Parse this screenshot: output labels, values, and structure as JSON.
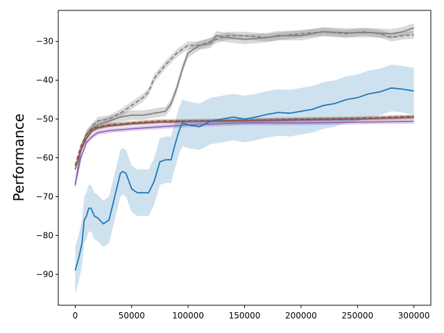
{
  "chart_data": {
    "type": "line",
    "title": "",
    "xlabel": "",
    "ylabel": "Performance",
    "xlim": [
      -15000,
      315000
    ],
    "ylim": [
      -98,
      -22
    ],
    "xticks": [
      0,
      50000,
      100000,
      150000,
      200000,
      250000,
      300000
    ],
    "yticks": [
      -90,
      -80,
      -70,
      -60,
      -50,
      -40,
      -30
    ],
    "grid": false,
    "legend": "none",
    "series": [
      {
        "color": "#808080",
        "dash": "solid",
        "x": [
          0,
          5000,
          10000,
          15000,
          20000,
          30000,
          40000,
          50000,
          60000,
          70000,
          80000,
          85000,
          90000,
          95000,
          100000,
          110000,
          120000,
          125000,
          135000,
          150000,
          170000,
          180000,
          200000,
          220000,
          240000,
          260000,
          280000,
          290000,
          300000
        ],
        "y": [
          -67,
          -58,
          -54,
          -52.5,
          -51.5,
          -50.5,
          -49.5,
          -49,
          -49,
          -48.5,
          -48,
          -46,
          -42,
          -37,
          -33,
          -31,
          -30.5,
          -28.5,
          -29,
          -29.5,
          -29,
          -28.5,
          -28.5,
          -27.5,
          -27.8,
          -27.7,
          -28,
          -27.5,
          -26.5
        ],
        "band": 1.2
      },
      {
        "color": "#808080",
        "dash": "dashed",
        "x": [
          0,
          5000,
          10000,
          15000,
          20000,
          30000,
          40000,
          50000,
          60000,
          65000,
          70000,
          80000,
          90000,
          100000,
          110000,
          120000,
          125000,
          135000,
          150000,
          170000,
          185000,
          200000,
          220000,
          240000,
          255000,
          270000,
          280000,
          290000,
          300000
        ],
        "y": [
          -67,
          -58,
          -54,
          -52,
          -50.5,
          -50,
          -48.5,
          -46.5,
          -44.5,
          -43,
          -39.5,
          -36,
          -33,
          -31,
          -31,
          -30,
          -29.5,
          -28.5,
          -28.5,
          -29,
          -28.5,
          -28,
          -27.5,
          -28,
          -27.5,
          -28,
          -29,
          -28.5,
          -28.3
        ],
        "band": 1.0
      },
      {
        "color": "#8c564b",
        "dash": "dashed",
        "x": [
          0,
          5000,
          10000,
          15000,
          20000,
          30000,
          50000,
          75000,
          100000,
          150000,
          200000,
          250000,
          300000
        ],
        "y": [
          -62,
          -57,
          -54,
          -52.5,
          -52,
          -51.5,
          -51,
          -50.5,
          -50.5,
          -50.3,
          -50,
          -49.8,
          -49.3
        ],
        "band": 0.5
      },
      {
        "color": "#8c564b",
        "dash": "solid",
        "x": [
          0,
          5000,
          10000,
          15000,
          20000,
          30000,
          50000,
          75000,
          100000,
          150000,
          200000,
          250000,
          300000
        ],
        "y": [
          -63,
          -58,
          -55,
          -53,
          -52.3,
          -51.8,
          -51.2,
          -50.8,
          -50.6,
          -50.4,
          -50.2,
          -50,
          -49.6
        ],
        "band": 0.5
      },
      {
        "color": "#9467bd",
        "dash": "solid",
        "x": [
          0,
          5000,
          10000,
          15000,
          20000,
          30000,
          50000,
          75000,
          100000,
          150000,
          200000,
          250000,
          300000
        ],
        "y": [
          -67,
          -60,
          -56,
          -54.5,
          -53.5,
          -53,
          -52.5,
          -52,
          -51.5,
          -51,
          -51,
          -50.8,
          -50.6
        ],
        "band": 0.6
      },
      {
        "color": "#1f77b4",
        "dash": "solid",
        "x": [
          0,
          3000,
          6000,
          8000,
          10000,
          12000,
          14000,
          17000,
          20000,
          25000,
          30000,
          35000,
          40000,
          42000,
          45000,
          50000,
          55000,
          60000,
          65000,
          70000,
          75000,
          80000,
          85000,
          88000,
          92000,
          95000,
          100000,
          110000,
          120000,
          130000,
          140000,
          150000,
          160000,
          170000,
          180000,
          190000,
          200000,
          210000,
          220000,
          230000,
          240000,
          250000,
          260000,
          270000,
          280000,
          290000,
          300000
        ],
        "y": [
          -89,
          -86,
          -82,
          -76,
          -75,
          -73,
          -73,
          -75,
          -75.5,
          -77,
          -76,
          -70,
          -64,
          -63.5,
          -64,
          -68,
          -69,
          -69,
          -69,
          -66,
          -61,
          -60.5,
          -60.5,
          -57,
          -53,
          -51,
          -51.5,
          -52,
          -50.5,
          -50,
          -49.5,
          -50,
          -49.5,
          -48.8,
          -48.3,
          -48.5,
          -48,
          -47.5,
          -46.5,
          -46,
          -45,
          -44.5,
          -43.5,
          -43,
          -42,
          -42.3,
          -42.8
        ],
        "band": 6
      }
    ]
  }
}
